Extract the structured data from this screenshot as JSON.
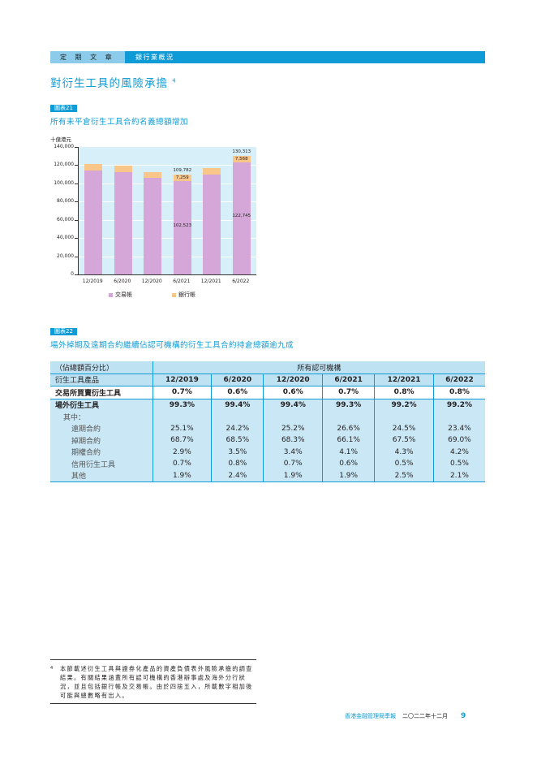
{
  "header": {
    "section": "定 期 文 章",
    "topic": "銀行業概況"
  },
  "heading": {
    "title": "對衍生工具的風險承擔",
    "footnote_ref": "4"
  },
  "chart21": {
    "badge": "圖表21",
    "title": "所有未平倉衍生工具合約名義總額增加",
    "unit": "十億港元",
    "legend": {
      "trading": "交易帳",
      "banking": "銀行帳"
    },
    "labels": {
      "6/2021_total": "109,782",
      "6/2021_banking": "7,259",
      "6/2021_trading": "102,523",
      "6/2022_total": "130,313",
      "6/2022_banking": "7,568",
      "6/2022_trading": "122,745"
    }
  },
  "chart_data": {
    "type": "bar",
    "stacked": true,
    "title": "所有未平倉衍生工具合約名義總額增加",
    "xlabel": "",
    "ylabel": "十億港元",
    "ylim": [
      0,
      140000
    ],
    "yticks": [
      "0",
      "20,000",
      "40,000",
      "60,000",
      "80,000",
      "100,000",
      "120,000",
      "140,000"
    ],
    "categories": [
      "12/2019",
      "6/2020",
      "12/2020",
      "6/2021",
      "12/2021",
      "6/2022"
    ],
    "series": [
      {
        "name": "交易帳",
        "color": "#d4a7d8",
        "values": [
          114000,
          112500,
          106000,
          102523,
          109500,
          122745
        ]
      },
      {
        "name": "銀行帳",
        "color": "#f9c68a",
        "values": [
          7000,
          7000,
          6500,
          7259,
          7000,
          7568
        ]
      }
    ],
    "totals": [
      121000,
      119500,
      112500,
      109782,
      116500,
      130313
    ],
    "grid": true,
    "legend_position": "bottom"
  },
  "table22": {
    "badge": "圖表22",
    "title": "場外掉期及遠期合約繼續佔認可機構的衍生工具合約持倉總額逾九成",
    "corner": "（佔總額百分比）",
    "group_header": "所有認可機構",
    "row_header": "衍生工具產品",
    "columns": [
      "12/2019",
      "6/2020",
      "12/2020",
      "6/2021",
      "12/2021",
      "6/2022"
    ],
    "rows": [
      {
        "label": "交易所買賣衍生工具",
        "values": [
          "0.7%",
          "0.6%",
          "0.6%",
          "0.7%",
          "0.8%",
          "0.8%"
        ]
      },
      {
        "label": "場外衍生工具",
        "values": [
          "99.3%",
          "99.4%",
          "99.4%",
          "99.3%",
          "99.2%",
          "99.2%"
        ]
      },
      {
        "label": "其中：",
        "values": [
          "",
          "",
          "",
          "",
          "",
          ""
        ]
      },
      {
        "label": "遠期合約",
        "values": [
          "25.1%",
          "24.2%",
          "25.2%",
          "26.6%",
          "24.5%",
          "23.4%"
        ]
      },
      {
        "label": "掉期合約",
        "values": [
          "68.7%",
          "68.5%",
          "68.3%",
          "66.1%",
          "67.5%",
          "69.0%"
        ]
      },
      {
        "label": "期權合約",
        "values": [
          "2.9%",
          "3.5%",
          "3.4%",
          "4.1%",
          "4.3%",
          "4.2%"
        ]
      },
      {
        "label": "信用衍生工具",
        "values": [
          "0.7%",
          "0.8%",
          "0.7%",
          "0.6%",
          "0.5%",
          "0.5%"
        ]
      },
      {
        "label": "其他",
        "values": [
          "1.9%",
          "2.4%",
          "1.9%",
          "1.9%",
          "2.5%",
          "2.1%"
        ]
      }
    ]
  },
  "footnote": {
    "num": "4",
    "text": "本節載述衍生工具與證券化產品的資產負債表外風險承擔的調查結果。有關結果涵蓋所有認可機構的香港辦事處及海外分行狀況，並且包括銀行帳及交易帳。由於四捨五入，所載數字相加後可能與總數略有出入。"
  },
  "footer": {
    "publication": "香港金融管理局季報",
    "date": "二〇二二年十二月",
    "page": "9"
  }
}
